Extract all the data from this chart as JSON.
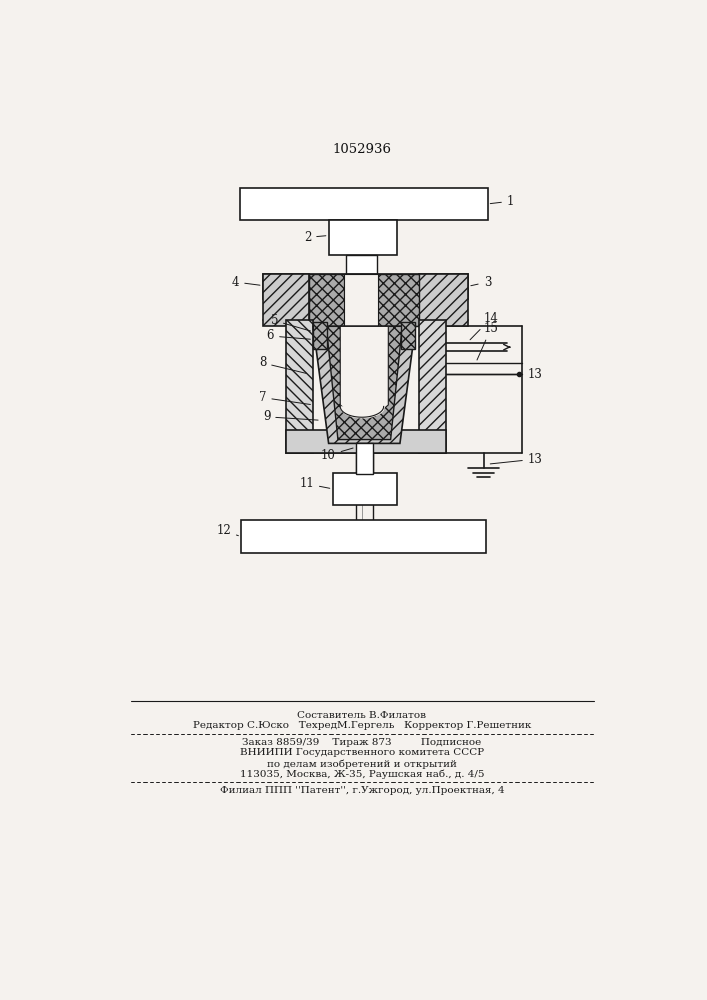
{
  "patent_number": "1052936",
  "bg_color": "#f5f2ee",
  "line_color": "#1a1a1a",
  "label_color": "#111111",
  "footer": {
    "line1": "Составитель В.Филатов",
    "line2": "Редактор С.Юско   ТехредМ.Гергель   Корректор Г.Решетник",
    "line3": "Заказ 8859/39    Тираж 873         Подписное",
    "line4": "ВНИИПИ Государственного комитета СССР",
    "line5": "по делам изобретений и открытий",
    "line6": "113035, Москва, Ж-35, Раушская наб., д. 4/5",
    "line7": "Филиал ППП ''Патент'', г.Ужгород, ул.Проектная, 4"
  }
}
